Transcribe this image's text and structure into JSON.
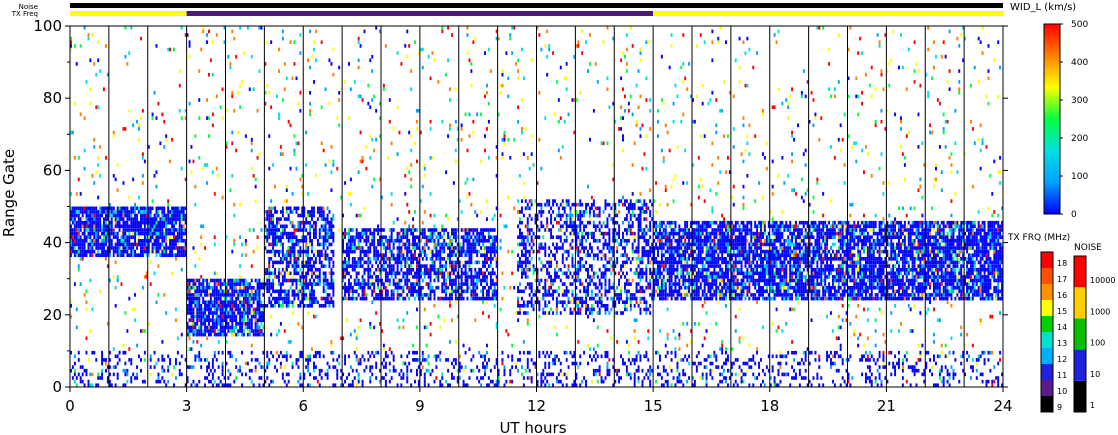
{
  "header": {
    "noise_label": "Noise",
    "txfreq_label": "TX Freq"
  },
  "chart_data": {
    "type": "heatmap",
    "xlabel": "UT hours",
    "ylabel": "Range Gate",
    "xlim": [
      0,
      24
    ],
    "ylim": [
      0,
      100
    ],
    "xticks": [
      0,
      3,
      6,
      9,
      12,
      15,
      18,
      21,
      24
    ],
    "yticks": [
      0,
      20,
      40,
      60,
      80,
      100
    ],
    "hour_lines": [
      1,
      2,
      3,
      4,
      5,
      6,
      7,
      8,
      9,
      10,
      11,
      12,
      13,
      14,
      15,
      16,
      17,
      18,
      19,
      20,
      21,
      22,
      23
    ],
    "noise_bar": {
      "color": "#000000",
      "range": [
        0,
        24
      ]
    },
    "txfreq_bar": [
      {
        "from": 0,
        "to": 3,
        "color": "#ffff00"
      },
      {
        "from": 3,
        "to": 15,
        "color": "#4b1a7a"
      },
      {
        "from": 15,
        "to": 24,
        "color": "#ffff00"
      }
    ],
    "echo_regions": [
      {
        "x0": 0.0,
        "x1": 3.0,
        "y0": 36,
        "y1": 50,
        "density": 0.85
      },
      {
        "x0": 3.0,
        "x1": 5.0,
        "y0": 14,
        "y1": 30,
        "density": 0.85
      },
      {
        "x0": 5.0,
        "x1": 6.8,
        "y0": 22,
        "y1": 50,
        "density": 0.6
      },
      {
        "x0": 7.0,
        "x1": 11.0,
        "y0": 24,
        "y1": 44,
        "density": 0.65
      },
      {
        "x0": 11.5,
        "x1": 15.0,
        "y0": 20,
        "y1": 52,
        "density": 0.45
      },
      {
        "x0": 15.0,
        "x1": 24.0,
        "y0": 24,
        "y1": 46,
        "density": 0.8
      },
      {
        "x0": 0.0,
        "x1": 24.0,
        "y0": 0,
        "y1": 10,
        "density": 0.25
      },
      {
        "x0": 0.0,
        "x1": 24.0,
        "y0": 10,
        "y1": 100,
        "density": 0.04
      }
    ],
    "width_colorbar": {
      "title": "WID_L (km/s)",
      "ticks": [
        0,
        100,
        200,
        300,
        400,
        500
      ],
      "range": [
        0,
        500
      ],
      "stops": [
        "#0000ff",
        "#00a0ff",
        "#00e0e0",
        "#00ff40",
        "#ffff00",
        "#ff8000",
        "#ff0000"
      ]
    },
    "txfreq_colorbar": {
      "title": "TX FRQ (MHz)",
      "labels": [
        "9",
        "10",
        "11",
        "12",
        "13",
        "14",
        "15",
        "16",
        "17",
        "18"
      ],
      "colors": [
        "#000000",
        "#5a1b8c",
        "#2020e0",
        "#00b0ff",
        "#00e0d0",
        "#00d000",
        "#ffff00",
        "#ff9000",
        "#ff5000",
        "#ff0000"
      ]
    },
    "noise_colorbar": {
      "title": "NOISE",
      "labels": [
        "1",
        "10",
        "100",
        "1000",
        "10000"
      ],
      "colors": [
        "#000000",
        "#2020e0",
        "#00c000",
        "#ffd000",
        "#ff0000"
      ]
    }
  }
}
